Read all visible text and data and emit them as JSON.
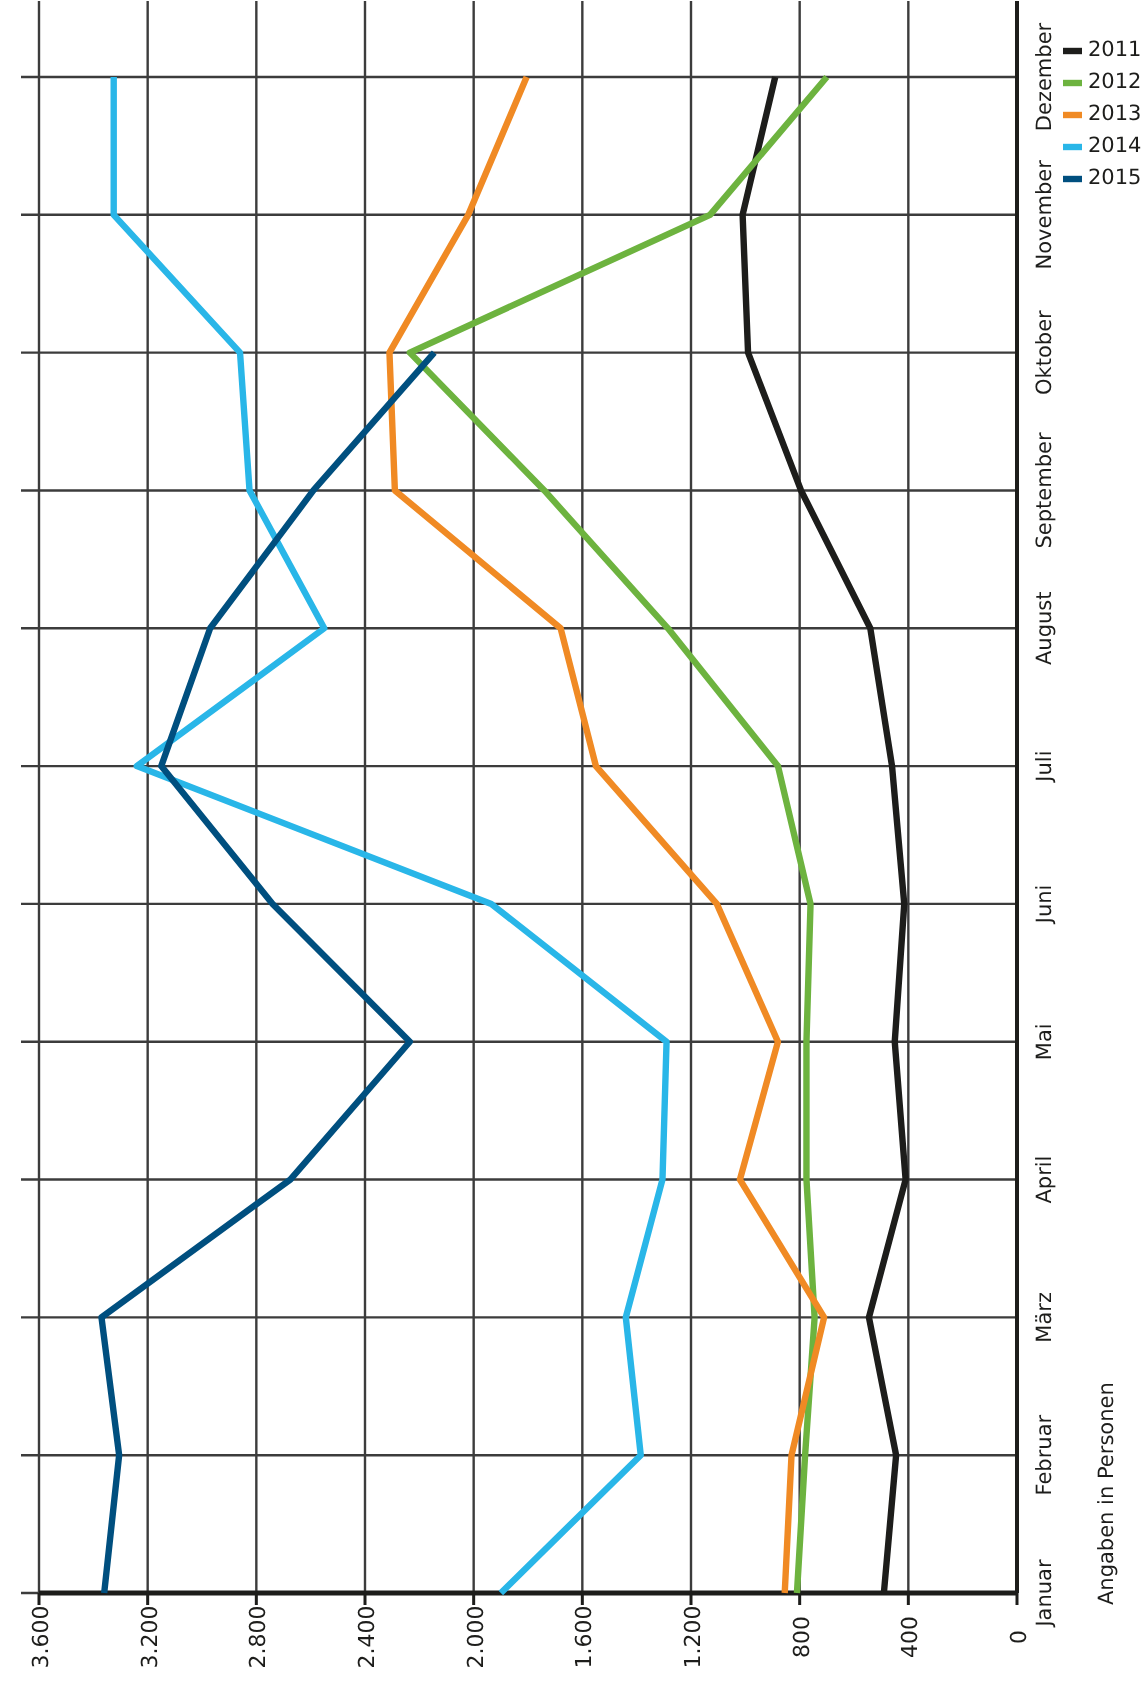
{
  "chart_data": {
    "type": "line",
    "orientation": "horizontal",
    "categories": [
      "Dezember",
      "November",
      "Oktober",
      "September",
      "August",
      "Juli",
      "Juni",
      "Mai",
      "April",
      "März",
      "Februar",
      "Januar"
    ],
    "series": [
      {
        "name": "2011",
        "color": "#1d1d1b",
        "values": [
          890,
          1010,
          990,
          795,
          540,
          460,
          415,
          450,
          410,
          545,
          445,
          490
        ]
      },
      {
        "name": "2012",
        "color": "#6db33f",
        "values": [
          700,
          1130,
          2235,
          1740,
          1285,
          880,
          760,
          775,
          775,
          745,
          780,
          810
        ]
      },
      {
        "name": "2013",
        "color": "#f08a24",
        "values": [
          1805,
          2020,
          2310,
          2290,
          1680,
          1550,
          1105,
          880,
          1020,
          710,
          830,
          855
        ]
      },
      {
        "name": "2014",
        "color": "#29b6e8",
        "values": [
          3325,
          3325,
          2860,
          2825,
          2550,
          3240,
          1935,
          1290,
          1305,
          1440,
          1385,
          1900
        ]
      },
      {
        "name": "2015",
        "color": "#004f7f",
        "values": [
          null,
          null,
          2145,
          2590,
          2970,
          3150,
          2740,
          2235,
          2675,
          3370,
          3305,
          3360
        ]
      }
    ],
    "xlim": [
      3600,
      0
    ],
    "xticks": [
      {
        "value": 0,
        "label": "0"
      },
      {
        "value": 400,
        "label": "400"
      },
      {
        "value": 800,
        "label": "800"
      },
      {
        "value": 1200,
        "label": "1.200"
      },
      {
        "value": 1600,
        "label": "1.600"
      },
      {
        "value": 2000,
        "label": "2.000"
      },
      {
        "value": 2400,
        "label": "2.400"
      },
      {
        "value": 2800,
        "label": "2.800"
      },
      {
        "value": 3200,
        "label": "3.200"
      },
      {
        "value": 3600,
        "label": "3.600"
      }
    ],
    "grid": true,
    "legend": "top right",
    "line_style": "solid",
    "annotations": [
      "Angaben in Personen"
    ]
  }
}
